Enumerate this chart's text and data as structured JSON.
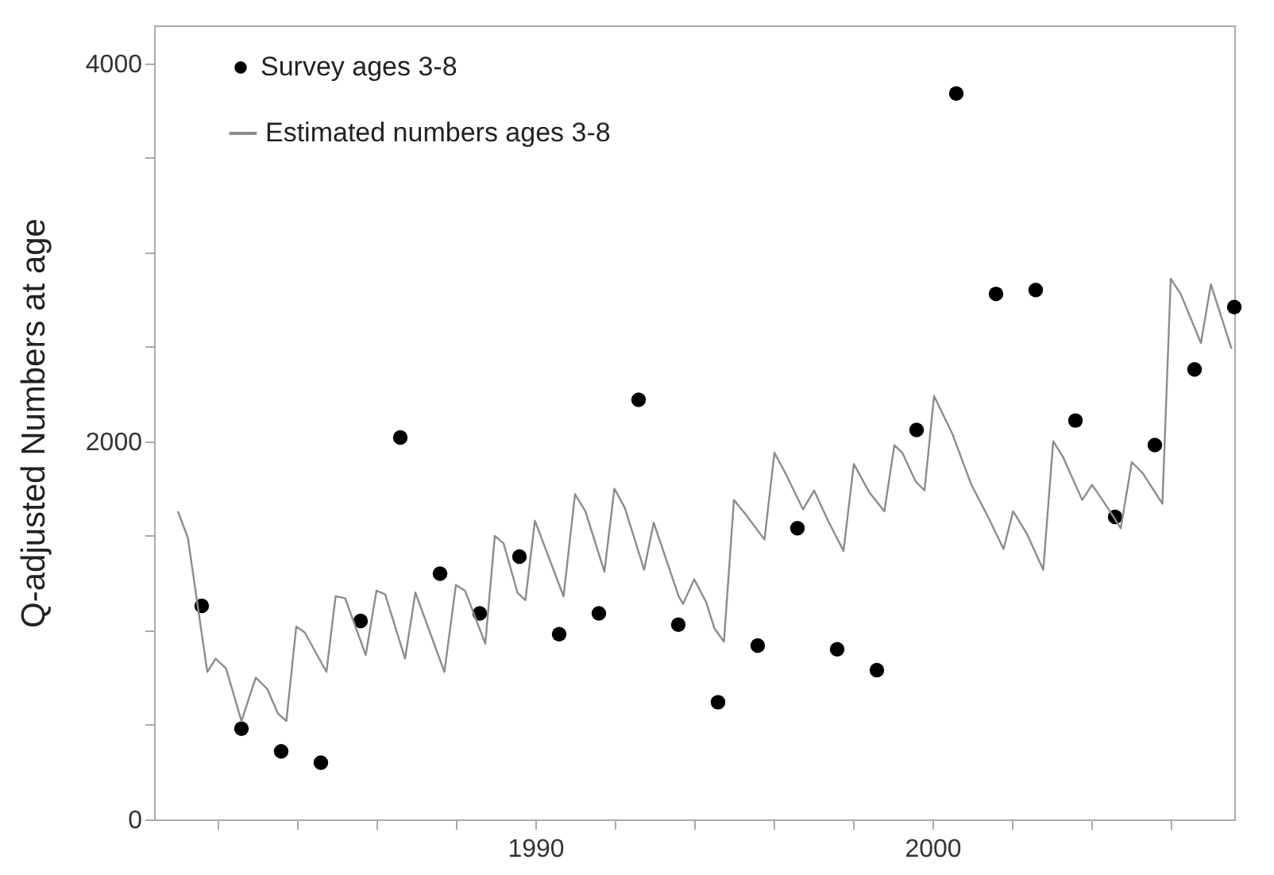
{
  "chart_data": {
    "type": "scatter",
    "ylabel": "Q-adjusted Numbers at age",
    "xlim": [
      1980.4,
      2007.6
    ],
    "ylim": [
      0,
      4200
    ],
    "xticks": [
      {
        "value": 1982,
        "label": null
      },
      {
        "value": 1984,
        "label": null
      },
      {
        "value": 1986,
        "label": null
      },
      {
        "value": 1988,
        "label": null
      },
      1990,
      {
        "value": 1992,
        "label": null
      },
      {
        "value": 1994,
        "label": null
      },
      {
        "value": 1996,
        "label": null
      },
      {
        "value": 1998,
        "label": null
      },
      2000,
      {
        "value": 2002,
        "label": null
      },
      {
        "value": 2004,
        "label": null
      },
      {
        "value": 2006,
        "label": null
      }
    ],
    "yticks": [
      0,
      {
        "value": 500,
        "label": null
      },
      {
        "value": 1000,
        "label": null
      },
      {
        "value": 1500,
        "label": null
      },
      2000,
      {
        "value": 2500,
        "label": null
      },
      {
        "value": 3000,
        "label": null
      },
      {
        "value": 3500,
        "label": null
      },
      4000
    ],
    "grid": false,
    "legend": "top left",
    "series": [
      {
        "name": "Survey ages 3-8",
        "marker": "circle",
        "color": "#000000",
        "x": [
          1981.6,
          1982.6,
          1983.6,
          1984.6,
          1985.6,
          1986.6,
          1987.6,
          1988.6,
          1989.6,
          1990.6,
          1991.6,
          1992.6,
          1993.6,
          1994.6,
          1995.6,
          1996.6,
          1997.6,
          1998.6,
          1999.6,
          2000.6,
          2001.6,
          2002.6,
          2003.6,
          2004.6,
          2005.6,
          2006.6,
          2007.6
        ],
        "values": [
          1130,
          480,
          360,
          300,
          1050,
          2020,
          1300,
          1090,
          1390,
          980,
          1090,
          2220,
          1030,
          620,
          920,
          1540,
          900,
          790,
          2060,
          3840,
          2780,
          2800,
          2110,
          1600,
          1980,
          2380,
          2710
        ]
      },
      {
        "name": "Estimated numbers ages 3-8",
        "type": "line",
        "color": "#8c8c8c",
        "line_style": "solid",
        "x": [
          1981.0,
          1981.25,
          1981.74,
          1981.95,
          1982.21,
          1982.6,
          1982.96,
          1983.25,
          1983.52,
          1983.73,
          1983.98,
          1984.19,
          1984.74,
          1984.97,
          1985.21,
          1985.73,
          1986.0,
          1986.22,
          1986.72,
          1986.98,
          1987.71,
          1988.0,
          1988.23,
          1988.74,
          1988.98,
          1989.2,
          1989.55,
          1989.75,
          1989.99,
          1990.71,
          1991.0,
          1991.26,
          1991.74,
          1991.99,
          1992.25,
          1992.74,
          1992.98,
          1993.61,
          1993.72,
          1994.0,
          1994.3,
          1994.51,
          1994.75,
          1995.0,
          1995.31,
          1995.77,
          1996.02,
          1996.3,
          1996.74,
          1997.02,
          1997.37,
          1997.76,
          1998.02,
          1998.41,
          1998.79,
          1999.04,
          1999.24,
          1999.57,
          1999.8,
          2000.04,
          2000.5,
          2000.98,
          2001.4,
          2001.79,
          2002.03,
          2002.38,
          2002.79,
          2003.04,
          2003.28,
          2003.77,
          2004.02,
          2004.47,
          2004.74,
          2005.02,
          2005.3,
          2005.79,
          2006.0,
          2006.25,
          2006.76,
          2007.01,
          2007.53
        ],
        "values": [
          1630,
          1490,
          780,
          850,
          800,
          520,
          750,
          690,
          560,
          520,
          1020,
          990,
          780,
          1180,
          1170,
          870,
          1210,
          1190,
          850,
          1200,
          780,
          1240,
          1210,
          930,
          1500,
          1460,
          1200,
          1160,
          1580,
          1180,
          1720,
          1630,
          1310,
          1750,
          1650,
          1320,
          1570,
          1180,
          1140,
          1270,
          1150,
          1010,
          940,
          1690,
          1610,
          1480,
          1940,
          1830,
          1640,
          1740,
          1580,
          1420,
          1880,
          1730,
          1630,
          1980,
          1940,
          1790,
          1740,
          2240,
          2040,
          1770,
          1600,
          1430,
          1630,
          1510,
          1320,
          2000,
          1920,
          1690,
          1770,
          1630,
          1540,
          1890,
          1830,
          1670,
          2860,
          2780,
          2520,
          2830,
          2490
        ]
      }
    ]
  }
}
